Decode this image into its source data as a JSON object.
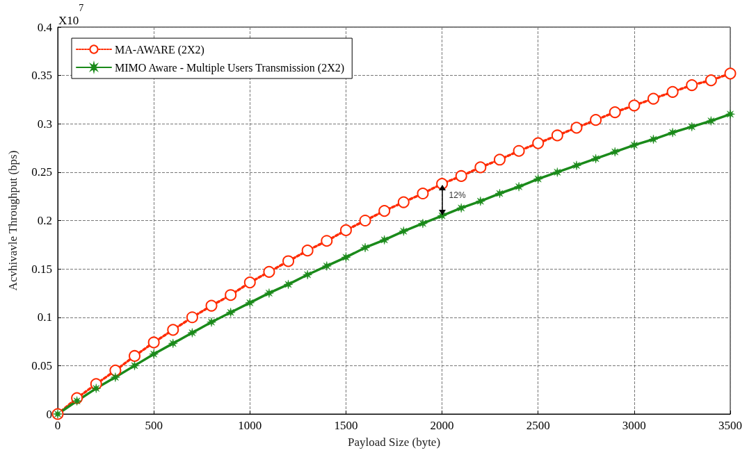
{
  "chart_data": {
    "type": "line",
    "xlabel": "Payload Size (byte)",
    "ylabel": "Acvhivavle Throughput (bps)",
    "x": [
      0,
      100,
      200,
      300,
      400,
      500,
      600,
      700,
      800,
      900,
      1000,
      1100,
      1200,
      1300,
      1400,
      1500,
      1600,
      1700,
      1800,
      1900,
      2000,
      2100,
      2200,
      2300,
      2400,
      2500,
      2600,
      2700,
      2800,
      2900,
      3000,
      3100,
      3200,
      3300,
      3400,
      3500
    ],
    "series": [
      {
        "name": "MA-AWARE (2X2)",
        "color": "#ff2a00",
        "marker": "circle",
        "line_style": "dotted",
        "values": [
          0,
          0.0165,
          0.031,
          0.045,
          0.06,
          0.074,
          0.087,
          0.1,
          0.112,
          0.123,
          0.136,
          0.147,
          0.158,
          0.169,
          0.179,
          0.19,
          0.2,
          0.21,
          0.219,
          0.228,
          0.238,
          0.246,
          0.255,
          0.263,
          0.272,
          0.28,
          0.288,
          0.296,
          0.304,
          0.312,
          0.319,
          0.326,
          0.333,
          0.34,
          0.345,
          0.352
        ]
      },
      {
        "name": "MIMO Aware - Multiple Users Transmission (2X2)",
        "color": "#1a8a1a",
        "marker": "star",
        "line_style": "solid",
        "values": [
          0,
          0.0135,
          0.0265,
          0.038,
          0.05,
          0.062,
          0.073,
          0.084,
          0.095,
          0.105,
          0.115,
          0.125,
          0.134,
          0.144,
          0.153,
          0.162,
          0.172,
          0.18,
          0.189,
          0.197,
          0.205,
          0.213,
          0.22,
          0.228,
          0.235,
          0.243,
          0.25,
          0.257,
          0.264,
          0.271,
          0.278,
          0.284,
          0.291,
          0.297,
          0.303,
          0.31
        ]
      }
    ],
    "xlim": [
      0,
      3500
    ],
    "xticks": [
      0,
      500,
      1000,
      1500,
      2000,
      2500,
      3000,
      3500
    ],
    "ylim": [
      0,
      0.4
    ],
    "yticks": [
      0,
      0.05,
      0.1,
      0.15,
      0.2,
      0.25,
      0.3,
      0.35,
      0.4
    ],
    "annotations": [
      "X10$^{7}$",
      {
        "text": "12%",
        "x": 2000,
        "y": 0.238
      }
    ],
    "grid": true,
    "legend": "top left"
  }
}
